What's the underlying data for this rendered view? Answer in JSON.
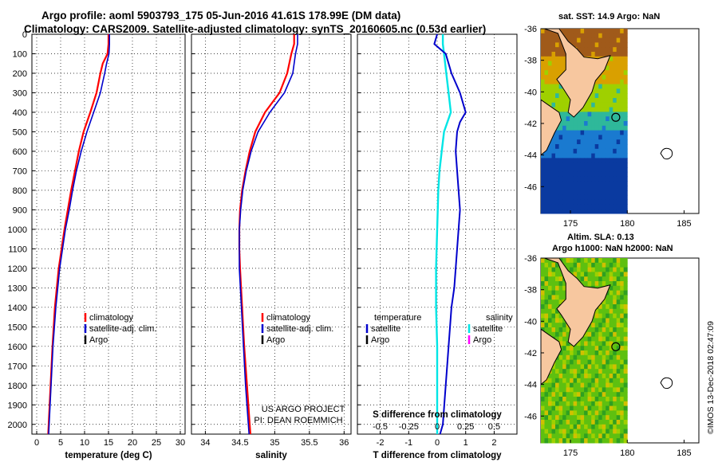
{
  "header": {
    "title_line1": "Argo profile: aoml 5903793_175 05-Jun-2016 41.61S 178.99E (DM data)",
    "title_line2": "Climatology: CARS2009. Satellite-adjusted climatology: synTS_20160605.nc (0.53d earlier)"
  },
  "depth_ticks": [
    "0",
    "100",
    "200",
    "300",
    "400",
    "500",
    "600",
    "700",
    "800",
    "900",
    "1000",
    "1100",
    "1200",
    "1300",
    "1400",
    "1500",
    "1600",
    "1700",
    "1800",
    "1900",
    "2000"
  ],
  "panels": {
    "temperature": {
      "xlabel": "temperature (deg C)",
      "xticks": [
        "0",
        "5",
        "10",
        "15",
        "20",
        "25",
        "30"
      ],
      "legend": [
        "climatology",
        "satellite-adj. clim.",
        "Argo"
      ]
    },
    "salinity": {
      "xlabel": "salinity",
      "xticks": [
        "34",
        "34.5",
        "35",
        "35.5",
        "36"
      ],
      "legend": [
        "climatology",
        "satellite-adj. clim.",
        "Argo"
      ],
      "credit1": "US ARGO PROJECT",
      "credit2": "PI: DEAN ROEMMICH"
    },
    "difference": {
      "xlabel": "T difference from climatology",
      "xticks": [
        "-2",
        "-1",
        "0",
        "1",
        "2"
      ],
      "s_label": "S difference from climatology",
      "s_ticks": [
        "-0.5",
        "-0.25",
        "0",
        "0.25",
        "0.5"
      ],
      "legend_t_title": "temperature",
      "legend_s_title": "salinity",
      "legend_t": [
        "satellite",
        "Argo"
      ],
      "legend_s": [
        "satellite",
        "Argo"
      ]
    }
  },
  "maps": {
    "sst_title": "sat. SST: 14.9 Argo: NaN",
    "alt_title1": "Altim. SLA: 0.13",
    "alt_title2": "Argo h1000: NaN h2000: NaN",
    "yticks": [
      "-36",
      "-38",
      "-40",
      "-42",
      "-44",
      "-46"
    ],
    "xticks": [
      "175",
      "180",
      "185"
    ]
  },
  "footer": {
    "stamp": "©IMOS 13-Dec-2018 02:47:09"
  },
  "colors": {
    "climatology": "#ff0000",
    "satellite": "#0000cc",
    "argo": "#000000",
    "s_satellite": "#00e5e5",
    "s_argo": "#ff00ff",
    "land": "#f7c79f"
  },
  "chart_data": [
    {
      "type": "line",
      "xlabel": "temperature (deg C)",
      "ylim": [
        0,
        2050
      ],
      "xlim": [
        -1,
        31
      ],
      "series": [
        {
          "name": "climatology",
          "depth": [
            0,
            50,
            100,
            150,
            200,
            300,
            400,
            500,
            600,
            700,
            800,
            900,
            1000,
            1200,
            1400,
            1600,
            1800,
            2000,
            2050
          ],
          "values": [
            15,
            15,
            14.8,
            13.8,
            13.3,
            12.5,
            11.2,
            9.8,
            8.8,
            8.0,
            7.2,
            6.5,
            5.8,
            4.6,
            3.8,
            3.3,
            2.9,
            2.5,
            2.4
          ]
        },
        {
          "name": "satellite-adj. clim.",
          "depth": [
            0,
            50,
            100,
            150,
            200,
            300,
            400,
            500,
            600,
            700,
            800,
            900,
            1000,
            1200,
            1400,
            1600,
            1800,
            2000,
            2050
          ],
          "values": [
            15.2,
            15.2,
            15.1,
            14.6,
            14.2,
            13.3,
            11.9,
            10.5,
            9.3,
            8.3,
            7.5,
            6.8,
            6.0,
            4.8,
            4.0,
            3.4,
            3.0,
            2.6,
            2.5
          ]
        }
      ]
    },
    {
      "type": "line",
      "xlabel": "salinity",
      "ylim": [
        0,
        2050
      ],
      "xlim": [
        33.8,
        36.1
      ],
      "series": [
        {
          "name": "climatology",
          "depth": [
            0,
            50,
            100,
            200,
            300,
            400,
            500,
            600,
            700,
            800,
            900,
            1000,
            1100,
            1200,
            1400,
            1600,
            1800,
            2000,
            2050
          ],
          "values": [
            35.28,
            35.28,
            35.24,
            35.18,
            35.07,
            34.86,
            34.72,
            34.64,
            34.58,
            34.53,
            34.5,
            34.49,
            34.49,
            34.5,
            34.53,
            34.56,
            34.6,
            34.64,
            34.65
          ]
        },
        {
          "name": "satellite-adj. clim.",
          "depth": [
            0,
            50,
            100,
            200,
            300,
            400,
            500,
            600,
            700,
            800,
            900,
            1000,
            1100,
            1200,
            1400,
            1600,
            1800,
            2000,
            2050
          ],
          "values": [
            35.33,
            35.33,
            35.3,
            35.26,
            35.14,
            34.93,
            34.76,
            34.66,
            34.59,
            34.54,
            34.51,
            34.49,
            34.49,
            34.49,
            34.52,
            34.55,
            34.58,
            34.62,
            34.63
          ]
        }
      ]
    },
    {
      "type": "line",
      "xlabel": "T difference from climatology",
      "ylim": [
        0,
        2050
      ],
      "xlim": [
        -2.8,
        2.8
      ],
      "series": [
        {
          "name": "satellite",
          "depth": [
            0,
            50,
            100,
            150,
            200,
            300,
            400,
            450,
            500,
            600,
            700,
            800,
            900,
            1000,
            1100,
            1200,
            1300,
            1400,
            1500,
            1600,
            1700,
            1800,
            1900,
            2000,
            2050
          ],
          "values": [
            0,
            -0.1,
            0.3,
            0.4,
            0.5,
            0.8,
            1.0,
            0.8,
            0.7,
            0.65,
            0.7,
            0.75,
            0.8,
            0.75,
            0.7,
            0.65,
            0.6,
            0.5,
            0.45,
            0.4,
            0.35,
            0.3,
            0.25,
            0.2,
            0.1
          ]
        }
      ]
    },
    {
      "type": "line",
      "xlabel": "S difference from climatology",
      "ylim": [
        0,
        2050
      ],
      "xlim": [
        -0.7,
        0.7
      ],
      "series": [
        {
          "name": "satellite",
          "depth": [
            0,
            50,
            100,
            200,
            300,
            400,
            500,
            600,
            700,
            800,
            1000,
            1200,
            1400,
            1600,
            1800,
            2000,
            2050
          ],
          "values": [
            0.05,
            0.05,
            0.06,
            0.08,
            0.1,
            0.12,
            0.06,
            0.04,
            0.02,
            0.01,
            0.0,
            -0.01,
            -0.01,
            0.0,
            0.0,
            0.0,
            0.0
          ]
        }
      ]
    }
  ]
}
